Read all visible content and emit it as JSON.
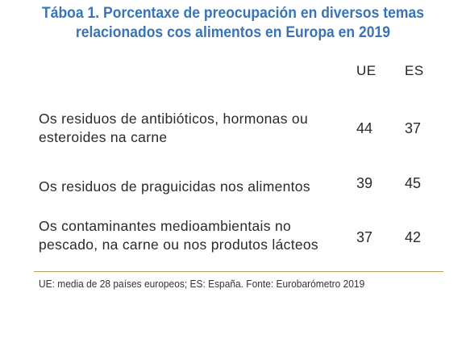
{
  "title": {
    "line1": "Táboa 1. Porcentaxe de preocupación en diversos temas",
    "line2": "relacionados cos alimentos en Europa en 2019"
  },
  "columns": {
    "ue": "UE",
    "es": "ES"
  },
  "rows": [
    {
      "label_line1": "Os residuos de antibióticos, hormonas ou",
      "label_line2": "esteroides na carne",
      "ue": "44",
      "es": "37"
    },
    {
      "label_line1": "Os residuos de praguicidas nos alimentos",
      "label_line2": "",
      "ue": "39",
      "es": "45"
    },
    {
      "label_line1": "Os contaminantes medioambientais no",
      "label_line2": "pescado, na carne ou nos produtos lácteos",
      "ue": "37",
      "es": "42"
    }
  ],
  "footnote": "UE: media de 28 países europeos; ES: España. Fonte: Eurobarómetro 2019"
}
